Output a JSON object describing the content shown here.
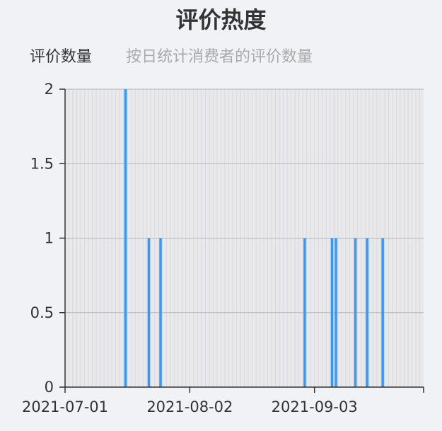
{
  "chart_data": {
    "type": "bar",
    "title": "评价热度",
    "subtitle": "按日统计消费者的评价数量",
    "series": [
      {
        "name": "评价数量",
        "color": "#3399ff",
        "points": [
          {
            "x": "2021-07-16",
            "y": 2
          },
          {
            "x": "2021-07-22",
            "y": 1
          },
          {
            "x": "2021-07-25",
            "y": 1
          },
          {
            "x": "2021-08-31",
            "y": 1
          },
          {
            "x": "2021-09-07",
            "y": 1
          },
          {
            "x": "2021-09-08",
            "y": 1
          },
          {
            "x": "2021-09-13",
            "y": 1
          },
          {
            "x": "2021-09-16",
            "y": 1
          },
          {
            "x": "2021-09-20",
            "y": 1
          }
        ]
      }
    ],
    "x_ticks": [
      "2021-07-01",
      "2021-08-02",
      "2021-09-03"
    ],
    "xlim": [
      "2021-07-01",
      "2021-09-30"
    ],
    "y_ticks": [
      "0",
      "0.5",
      "1",
      "1.5",
      "2"
    ],
    "ylim": [
      0,
      2
    ],
    "grid": true
  }
}
